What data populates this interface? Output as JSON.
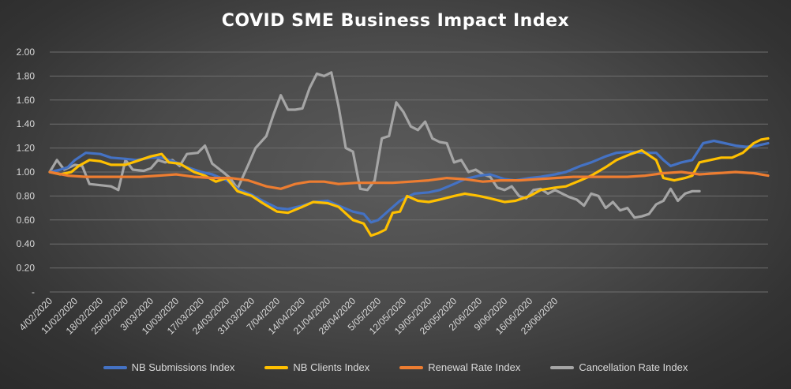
{
  "chart_data": {
    "type": "line",
    "title": "COVID SME Business Impact Index",
    "xlabel": "",
    "ylabel": "",
    "ylim": [
      0,
      2
    ],
    "yticks": [
      "-",
      "0.20",
      "0.40",
      "0.60",
      "0.80",
      "1.00",
      "1.20",
      "1.40",
      "1.60",
      "1.80",
      "2.00"
    ],
    "x_tick_labels": [
      "4/02/2020",
      "11/02/2020",
      "18/02/2020",
      "25/02/2020",
      "3/03/2020",
      "10/03/2020",
      "17/03/2020",
      "24/03/2020",
      "31/03/2020",
      "7/04/2020",
      "14/04/2020",
      "21/04/2020",
      "28/04/2020",
      "5/05/2020",
      "12/05/2020",
      "19/05/2020",
      "26/05/2020",
      "2/06/2020",
      "9/06/2020",
      "16/06/2020",
      "23/06/2020"
    ],
    "grid": true,
    "legend_position": "bottom",
    "series": [
      {
        "name": "NB Submissions Index",
        "color": "#4472C4",
        "points": [
          [
            0,
            1.0
          ],
          [
            3,
            1.02
          ],
          [
            5,
            1.04
          ],
          [
            7,
            1.1
          ],
          [
            10,
            1.16
          ],
          [
            14,
            1.15
          ],
          [
            17,
            1.12
          ],
          [
            21,
            1.11
          ],
          [
            24,
            1.1
          ],
          [
            28,
            1.12
          ],
          [
            31,
            1.12
          ],
          [
            35,
            1.08
          ],
          [
            38,
            1.04
          ],
          [
            42,
            1.0
          ],
          [
            45,
            0.98
          ],
          [
            49,
            0.93
          ],
          [
            52,
            0.86
          ],
          [
            56,
            0.81
          ],
          [
            59,
            0.76
          ],
          [
            63,
            0.7
          ],
          [
            66,
            0.69
          ],
          [
            70,
            0.72
          ],
          [
            73,
            0.75
          ],
          [
            77,
            0.76
          ],
          [
            80,
            0.72
          ],
          [
            84,
            0.67
          ],
          [
            87,
            0.65
          ],
          [
            89,
            0.58
          ],
          [
            91,
            0.6
          ],
          [
            94,
            0.68
          ],
          [
            97,
            0.76
          ],
          [
            101,
            0.82
          ],
          [
            105,
            0.83
          ],
          [
            108,
            0.85
          ],
          [
            112,
            0.9
          ],
          [
            115,
            0.94
          ],
          [
            119,
            0.97
          ],
          [
            122,
            0.98
          ],
          [
            126,
            0.94
          ],
          [
            129,
            0.93
          ],
          [
            133,
            0.95
          ],
          [
            136,
            0.96
          ],
          [
            140,
            0.98
          ],
          [
            143,
            1.0
          ],
          [
            147,
            1.05
          ],
          [
            150,
            1.08
          ],
          [
            154,
            1.13
          ],
          [
            157,
            1.16
          ],
          [
            161,
            1.17
          ],
          [
            164,
            1.16
          ],
          [
            168,
            1.16
          ],
          [
            170,
            1.1
          ],
          [
            172,
            1.05
          ],
          [
            175,
            1.08
          ],
          [
            178,
            1.1
          ],
          [
            181,
            1.24
          ],
          [
            184,
            1.26
          ],
          [
            187,
            1.24
          ],
          [
            190,
            1.22
          ],
          [
            193,
            1.21
          ],
          [
            196,
            1.22
          ],
          [
            199,
            1.24
          ]
        ]
      },
      {
        "name": "NB Clients Index",
        "color": "#FFC000",
        "points": [
          [
            0,
            1.0
          ],
          [
            3,
            0.98
          ],
          [
            6,
            1.0
          ],
          [
            8,
            1.05
          ],
          [
            11,
            1.1
          ],
          [
            14,
            1.09
          ],
          [
            17,
            1.06
          ],
          [
            21,
            1.06
          ],
          [
            24,
            1.09
          ],
          [
            28,
            1.13
          ],
          [
            31,
            1.15
          ],
          [
            33,
            1.08
          ],
          [
            36,
            1.07
          ],
          [
            40,
            1.0
          ],
          [
            43,
            0.97
          ],
          [
            46,
            0.92
          ],
          [
            49,
            0.95
          ],
          [
            52,
            0.84
          ],
          [
            56,
            0.8
          ],
          [
            59,
            0.74
          ],
          [
            63,
            0.67
          ],
          [
            66,
            0.66
          ],
          [
            70,
            0.71
          ],
          [
            73,
            0.75
          ],
          [
            77,
            0.74
          ],
          [
            80,
            0.71
          ],
          [
            84,
            0.6
          ],
          [
            87,
            0.57
          ],
          [
            89,
            0.47
          ],
          [
            91,
            0.49
          ],
          [
            93,
            0.52
          ],
          [
            95,
            0.66
          ],
          [
            97,
            0.67
          ],
          [
            99,
            0.8
          ],
          [
            102,
            0.76
          ],
          [
            105,
            0.75
          ],
          [
            108,
            0.77
          ],
          [
            112,
            0.8
          ],
          [
            115,
            0.82
          ],
          [
            119,
            0.8
          ],
          [
            122,
            0.78
          ],
          [
            126,
            0.75
          ],
          [
            129,
            0.76
          ],
          [
            133,
            0.8
          ],
          [
            136,
            0.85
          ],
          [
            140,
            0.87
          ],
          [
            143,
            0.88
          ],
          [
            147,
            0.93
          ],
          [
            150,
            0.97
          ],
          [
            154,
            1.04
          ],
          [
            157,
            1.1
          ],
          [
            161,
            1.15
          ],
          [
            164,
            1.18
          ],
          [
            168,
            1.1
          ],
          [
            170,
            0.95
          ],
          [
            173,
            0.93
          ],
          [
            176,
            0.95
          ],
          [
            178,
            0.97
          ],
          [
            180,
            1.08
          ],
          [
            183,
            1.1
          ],
          [
            186,
            1.12
          ],
          [
            189,
            1.12
          ],
          [
            192,
            1.16
          ],
          [
            195,
            1.24
          ],
          [
            197,
            1.27
          ],
          [
            199,
            1.28
          ]
        ]
      },
      {
        "name": "Renewal Rate Index",
        "color": "#ED7D31",
        "points": [
          [
            0,
            1.0
          ],
          [
            5,
            0.97
          ],
          [
            10,
            0.96
          ],
          [
            15,
            0.96
          ],
          [
            20,
            0.96
          ],
          [
            25,
            0.96
          ],
          [
            30,
            0.97
          ],
          [
            35,
            0.98
          ],
          [
            40,
            0.96
          ],
          [
            45,
            0.95
          ],
          [
            50,
            0.95
          ],
          [
            55,
            0.93
          ],
          [
            60,
            0.88
          ],
          [
            64,
            0.86
          ],
          [
            68,
            0.9
          ],
          [
            72,
            0.92
          ],
          [
            76,
            0.92
          ],
          [
            80,
            0.9
          ],
          [
            85,
            0.91
          ],
          [
            90,
            0.91
          ],
          [
            95,
            0.91
          ],
          [
            100,
            0.92
          ],
          [
            105,
            0.93
          ],
          [
            110,
            0.95
          ],
          [
            115,
            0.94
          ],
          [
            120,
            0.92
          ],
          [
            125,
            0.93
          ],
          [
            130,
            0.93
          ],
          [
            135,
            0.94
          ],
          [
            140,
            0.95
          ],
          [
            145,
            0.96
          ],
          [
            150,
            0.96
          ],
          [
            155,
            0.96
          ],
          [
            160,
            0.96
          ],
          [
            165,
            0.97
          ],
          [
            170,
            0.99
          ],
          [
            175,
            1.0
          ],
          [
            180,
            0.98
          ],
          [
            185,
            0.99
          ],
          [
            190,
            1.0
          ],
          [
            195,
            0.99
          ],
          [
            199,
            0.97
          ]
        ]
      },
      {
        "name": "Cancellation Rate Index",
        "color": "#A5A5A5",
        "points": [
          [
            0,
            1.0
          ],
          [
            2,
            1.1
          ],
          [
            4,
            1.02
          ],
          [
            7,
            1.06
          ],
          [
            9,
            1.05
          ],
          [
            11,
            0.9
          ],
          [
            14,
            0.89
          ],
          [
            17,
            0.88
          ],
          [
            19,
            0.85
          ],
          [
            21,
            1.1
          ],
          [
            23,
            1.02
          ],
          [
            26,
            1.01
          ],
          [
            28,
            1.03
          ],
          [
            30,
            1.1
          ],
          [
            32,
            1.08
          ],
          [
            34,
            1.1
          ],
          [
            36,
            1.05
          ],
          [
            38,
            1.15
          ],
          [
            41,
            1.16
          ],
          [
            43,
            1.22
          ],
          [
            45,
            1.07
          ],
          [
            48,
            1.0
          ],
          [
            50,
            0.95
          ],
          [
            52,
            0.86
          ],
          [
            55,
            1.06
          ],
          [
            57,
            1.2
          ],
          [
            60,
            1.3
          ],
          [
            62,
            1.48
          ],
          [
            64,
            1.64
          ],
          [
            66,
            1.52
          ],
          [
            68,
            1.52
          ],
          [
            70,
            1.53
          ],
          [
            72,
            1.7
          ],
          [
            74,
            1.82
          ],
          [
            76,
            1.8
          ],
          [
            78,
            1.83
          ],
          [
            80,
            1.55
          ],
          [
            82,
            1.2
          ],
          [
            84,
            1.17
          ],
          [
            86,
            0.86
          ],
          [
            88,
            0.85
          ],
          [
            90,
            0.93
          ],
          [
            92,
            1.28
          ],
          [
            94,
            1.3
          ],
          [
            96,
            1.58
          ],
          [
            98,
            1.5
          ],
          [
            100,
            1.38
          ],
          [
            102,
            1.35
          ],
          [
            104,
            1.42
          ],
          [
            106,
            1.28
          ],
          [
            108,
            1.25
          ],
          [
            110,
            1.24
          ],
          [
            112,
            1.08
          ],
          [
            114,
            1.1
          ],
          [
            116,
            1.0
          ],
          [
            118,
            1.02
          ],
          [
            120,
            0.98
          ],
          [
            122,
            0.96
          ],
          [
            124,
            0.87
          ],
          [
            126,
            0.85
          ],
          [
            128,
            0.88
          ],
          [
            130,
            0.8
          ],
          [
            132,
            0.78
          ],
          [
            134,
            0.85
          ],
          [
            136,
            0.86
          ],
          [
            138,
            0.82
          ],
          [
            140,
            0.85
          ],
          [
            142,
            0.82
          ],
          [
            144,
            0.79
          ],
          [
            146,
            0.77
          ],
          [
            148,
            0.72
          ],
          [
            150,
            0.82
          ],
          [
            152,
            0.8
          ],
          [
            154,
            0.7
          ],
          [
            156,
            0.75
          ],
          [
            158,
            0.68
          ],
          [
            160,
            0.7
          ],
          [
            162,
            0.62
          ],
          [
            164,
            0.63
          ],
          [
            166,
            0.65
          ],
          [
            168,
            0.73
          ],
          [
            170,
            0.76
          ],
          [
            172,
            0.86
          ],
          [
            174,
            0.76
          ],
          [
            176,
            0.82
          ],
          [
            178,
            0.84
          ],
          [
            180,
            0.84
          ]
        ]
      }
    ]
  }
}
